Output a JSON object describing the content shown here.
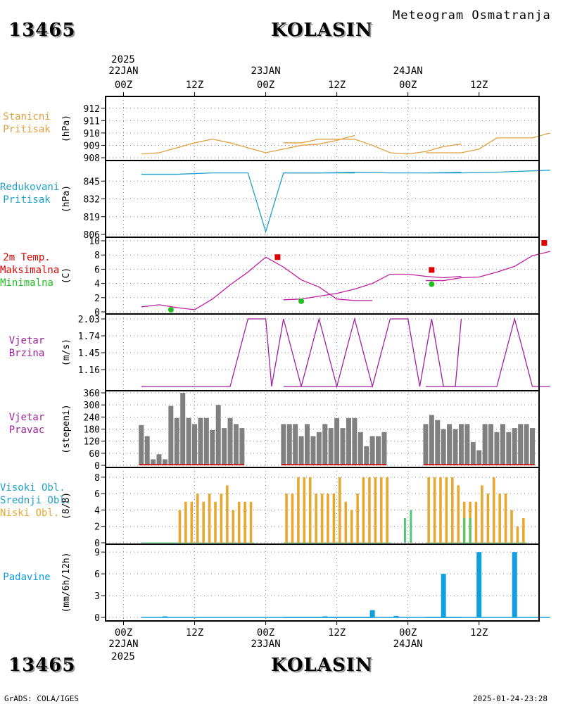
{
  "header": {
    "station_id": "13465",
    "station_name": "KOLASIN",
    "subtitle": "Meteogram Osmatranja"
  },
  "footer": {
    "station_id": "13465",
    "station_name": "KOLASIN",
    "credit": "GrADS: COLA/IGES",
    "timestamp": "2025-01-24-23:28"
  },
  "time_axis": {
    "top_year": "2025",
    "bottom_year": "2025",
    "ticks": [
      {
        "hour": "00Z",
        "date": "22JAN"
      },
      {
        "hour": "12Z",
        "date": ""
      },
      {
        "hour": "00Z",
        "date": "23JAN"
      },
      {
        "hour": "12Z",
        "date": ""
      },
      {
        "hour": "00Z",
        "date": "24JAN"
      },
      {
        "hour": "12Z",
        "date": ""
      }
    ]
  },
  "colors": {
    "pressure": "#e0a040",
    "reduced": "#1ea0c8",
    "tmax": "#e00000",
    "tmin": "#20c020",
    "wind": "#a020a0",
    "dirbar": "#808080",
    "cloud_low": "#e8a830",
    "cloud_mid": "#50c878",
    "precip": "#10a0e0"
  },
  "chart_data": [
    {
      "type": "line",
      "panel": "pressure",
      "label_lines": [
        "Stanicni",
        "Pritisak"
      ],
      "ylabel": "(hPa)",
      "yticks": [
        908,
        909,
        910,
        911,
        912
      ],
      "ylim": [
        908,
        912.5
      ],
      "xlim": [
        -3,
        72
      ],
      "series": [
        {
          "segments": [
            [
              [
                3,
                908.3
              ],
              [
                6,
                908.4
              ],
              [
                9,
                908.8
              ],
              [
                12,
                909.2
              ],
              [
                15,
                909.5
              ],
              [
                18,
                909.2
              ],
              [
                21,
                908.8
              ],
              [
                24,
                908.4
              ],
              [
                27,
                908.7
              ],
              [
                30,
                909.0
              ],
              [
                33,
                909.1
              ],
              [
                36,
                909.4
              ],
              [
                39,
                909.8
              ]
            ],
            [
              [
                27,
                909.2
              ],
              [
                30,
                909.2
              ],
              [
                33,
                909.5
              ],
              [
                36,
                909.5
              ],
              [
                39,
                909.5
              ],
              [
                42,
                909.0
              ],
              [
                45,
                908.4
              ],
              [
                48,
                908.3
              ],
              [
                51,
                908.5
              ],
              [
                54,
                908.9
              ],
              [
                57,
                909.1
              ]
            ],
            [
              [
                51,
                908.4
              ],
              [
                54,
                908.4
              ],
              [
                57,
                908.4
              ],
              [
                60,
                908.7
              ],
              [
                63,
                909.6
              ],
              [
                66,
                909.6
              ],
              [
                69,
                909.6
              ],
              [
                72,
                910.0
              ]
            ]
          ]
        }
      ]
    },
    {
      "type": "line",
      "panel": "reduced_pressure",
      "label_lines": [
        "Redukovani",
        "Pritisak"
      ],
      "ylabel": "(hPa)",
      "yticks": [
        806,
        819,
        832,
        845
      ],
      "ylim": [
        806,
        858
      ],
      "xlim": [
        -3,
        72
      ],
      "series": [
        {
          "segments": [
            [
              [
                3,
                850
              ],
              [
                9,
                850
              ],
              [
                15,
                851
              ],
              [
                21,
                851
              ],
              [
                24,
                808
              ],
              [
                27,
                851
              ],
              [
                33,
                851
              ],
              [
                39,
                851
              ]
            ],
            [
              [
                27,
                851
              ],
              [
                33,
                851
              ],
              [
                39,
                851.5
              ],
              [
                45,
                851
              ],
              [
                51,
                851
              ],
              [
                57,
                851.5
              ]
            ],
            [
              [
                51,
                851
              ],
              [
                57,
                851
              ],
              [
                63,
                851.5
              ],
              [
                66,
                852
              ],
              [
                69,
                852.5
              ],
              [
                72,
                853
              ]
            ]
          ]
        }
      ]
    },
    {
      "type": "line",
      "panel": "temperature",
      "label_lines": [
        "2m Temp.",
        "Maksimalna",
        "Minimalna"
      ],
      "ylabel": "(C)",
      "yticks": [
        0,
        2,
        4,
        6,
        8,
        10
      ],
      "ylim": [
        0,
        10
      ],
      "xlim": [
        -3,
        72
      ],
      "series": [
        {
          "segments": [
            [
              [
                3,
                0.7
              ],
              [
                6,
                1.0
              ],
              [
                9,
                0.6
              ],
              [
                12,
                0.3
              ],
              [
                15,
                1.8
              ],
              [
                18,
                3.8
              ],
              [
                21,
                5.6
              ],
              [
                24,
                7.7
              ],
              [
                27,
                6.3
              ],
              [
                30,
                4.5
              ],
              [
                33,
                3.5
              ],
              [
                36,
                1.8
              ],
              [
                39,
                1.6
              ],
              [
                42,
                1.6
              ]
            ],
            [
              [
                27,
                1.7
              ],
              [
                30,
                1.8
              ],
              [
                33,
                2.2
              ],
              [
                36,
                2.6
              ],
              [
                39,
                3.2
              ],
              [
                42,
                4.0
              ],
              [
                45,
                5.3
              ],
              [
                48,
                5.3
              ],
              [
                51,
                5.0
              ],
              [
                54,
                4.8
              ],
              [
                57,
                5.0
              ]
            ],
            [
              [
                51,
                4.4
              ],
              [
                54,
                4.4
              ],
              [
                57,
                4.8
              ],
              [
                60,
                4.9
              ],
              [
                63,
                5.6
              ],
              [
                66,
                6.4
              ],
              [
                69,
                7.9
              ],
              [
                72,
                8.5
              ]
            ]
          ]
        }
      ],
      "maxima": [
        [
          26,
          7.7
        ],
        [
          52,
          5.9
        ],
        [
          71,
          9.7
        ]
      ],
      "minima": [
        [
          8,
          0.3
        ],
        [
          30,
          1.5
        ],
        [
          52,
          3.9
        ]
      ]
    },
    {
      "type": "line",
      "panel": "wind_speed",
      "label_lines": [
        "Vjetar",
        "Brzina"
      ],
      "ylabel": "(m/s)",
      "yticks": [
        1.16,
        1.45,
        1.74,
        2.03
      ],
      "ylim": [
        0.87,
        2.03
      ],
      "xlim": [
        -3,
        72
      ],
      "series": [
        {
          "segments": [
            [
              [
                3,
                0.87
              ],
              [
                18,
                0.87
              ],
              [
                21,
                2.03
              ],
              [
                24,
                2.03
              ],
              [
                25,
                0.87
              ],
              [
                27,
                2.03
              ],
              [
                30,
                0.87
              ],
              [
                42,
                0.87
              ]
            ],
            [
              [
                27,
                0.87
              ],
              [
                30,
                0.87
              ],
              [
                33,
                2.03
              ],
              [
                36,
                0.87
              ],
              [
                39,
                2.03
              ],
              [
                42,
                0.87
              ],
              [
                45,
                2.03
              ],
              [
                48,
                2.03
              ],
              [
                50,
                0.87
              ],
              [
                52,
                2.03
              ],
              [
                54,
                0.87
              ],
              [
                56,
                0.87
              ],
              [
                57,
                2.03
              ]
            ],
            [
              [
                51,
                0.87
              ],
              [
                60,
                0.87
              ],
              [
                63,
                0.87
              ],
              [
                66,
                2.03
              ],
              [
                69,
                0.87
              ],
              [
                72,
                0.87
              ]
            ]
          ]
        }
      ]
    },
    {
      "type": "bar",
      "panel": "wind_direction",
      "label_lines": [
        "Vjetar",
        "Pravac"
      ],
      "ylabel": "(stepeni)",
      "yticks": [
        0,
        60,
        120,
        180,
        240,
        300,
        360
      ],
      "ylim": [
        0,
        360
      ],
      "xlim": [
        -3,
        72
      ],
      "groups": [
        {
          "x0": 3,
          "values": [
            200,
            145,
            30,
            55,
            30,
            295,
            235,
            360,
            235,
            205,
            235,
            235,
            175,
            300,
            185,
            235,
            205,
            185
          ]
        },
        {
          "x0": 27,
          "values": [
            205,
            205,
            205,
            145,
            205,
            145,
            165,
            205,
            185,
            235,
            185,
            235,
            235,
            165,
            95,
            145,
            145,
            165
          ]
        },
        {
          "x0": 51,
          "values": [
            205,
            250,
            225,
            180,
            205,
            180,
            205,
            205,
            115,
            75,
            205,
            205,
            165,
            205,
            165,
            185,
            205,
            205,
            185
          ]
        }
      ]
    },
    {
      "type": "bar",
      "panel": "clouds",
      "label_lines": [
        "Visoki Obl.",
        "Srednji Obl.",
        "Niski Obl."
      ],
      "ylabel": "(8/8)",
      "yticks": [
        0,
        2,
        4,
        6,
        8
      ],
      "ylim": [
        0,
        8.5
      ],
      "xlim": [
        -3,
        72
      ],
      "groups": [
        {
          "x0": 3,
          "low": [
            0,
            0,
            0,
            0,
            0,
            0,
            4,
            5,
            5,
            6,
            5,
            6,
            5,
            6,
            7,
            4,
            5,
            5,
            5
          ],
          "mid": []
        },
        {
          "x0": 27,
          "low": [
            6,
            6,
            8,
            8,
            8,
            6,
            6,
            6,
            6,
            8,
            5,
            4,
            6,
            8,
            8,
            8,
            8,
            8
          ],
          "mid": [
            [
              47.5,
              3
            ],
            [
              48.5,
              4
            ]
          ]
        },
        {
          "x0": 51,
          "low": [
            8,
            8,
            8,
            8,
            8,
            7,
            5,
            5,
            5,
            7,
            6,
            8,
            6,
            6,
            4,
            2,
            3
          ],
          "mid": [
            [
              57.5,
              3
            ],
            [
              58.5,
              3
            ]
          ]
        }
      ]
    },
    {
      "type": "bar",
      "panel": "precipitation",
      "label_lines": [
        "Padavine"
      ],
      "ylabel": "(mm/6h/12h)",
      "yticks": [
        0,
        3,
        6,
        9
      ],
      "ylim": [
        0,
        9.5
      ],
      "xlim": [
        -3,
        72
      ],
      "bars": [
        [
          7,
          0.15
        ],
        [
          34,
          0.15
        ],
        [
          46,
          0.2
        ],
        [
          42,
          1.0
        ],
        [
          54,
          6.0
        ],
        [
          60,
          9.0
        ],
        [
          66,
          9.0
        ]
      ],
      "baseline_ranges": [
        [
          3,
          42
        ],
        [
          27,
          57
        ],
        [
          51,
          72
        ]
      ]
    }
  ]
}
